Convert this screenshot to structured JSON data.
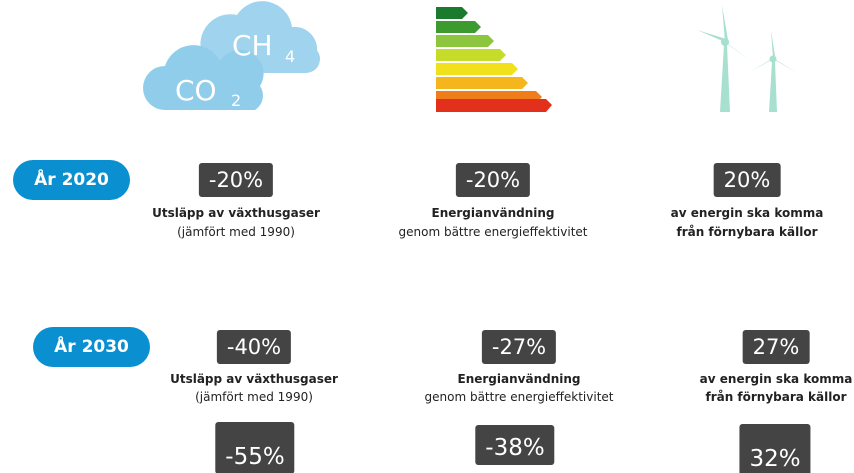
{
  "icons": {
    "co2": "CO",
    "co2_sub": "2",
    "ch4": "CH",
    "ch4_sub": "4"
  },
  "rows": [
    {
      "label": "År 2020",
      "items": [
        {
          "value": "-20%",
          "line1": "Utsläpp av växthusgaser",
          "line2": "(jämfört med 1990)"
        },
        {
          "value": "-20%",
          "line1": "Energianvändning",
          "line2": "genom bättre energieffektivitet"
        },
        {
          "value": "20%",
          "line1": "av energin ska komma",
          "line2": "från förnybara källor"
        }
      ]
    },
    {
      "label": "År 2030",
      "items": [
        {
          "value": "-40%",
          "line1": "Utsläpp av växthusgaser",
          "line2": "(jämfört med 1990)"
        },
        {
          "value": "-27%",
          "line1": "Energianvändning",
          "line2": "genom bättre energieffektivitet"
        },
        {
          "value": "27%",
          "line1": "av energin ska komma",
          "line2": "från förnybara källor"
        }
      ]
    }
  ],
  "extra": [
    "-55%",
    "-38%",
    "32%"
  ]
}
